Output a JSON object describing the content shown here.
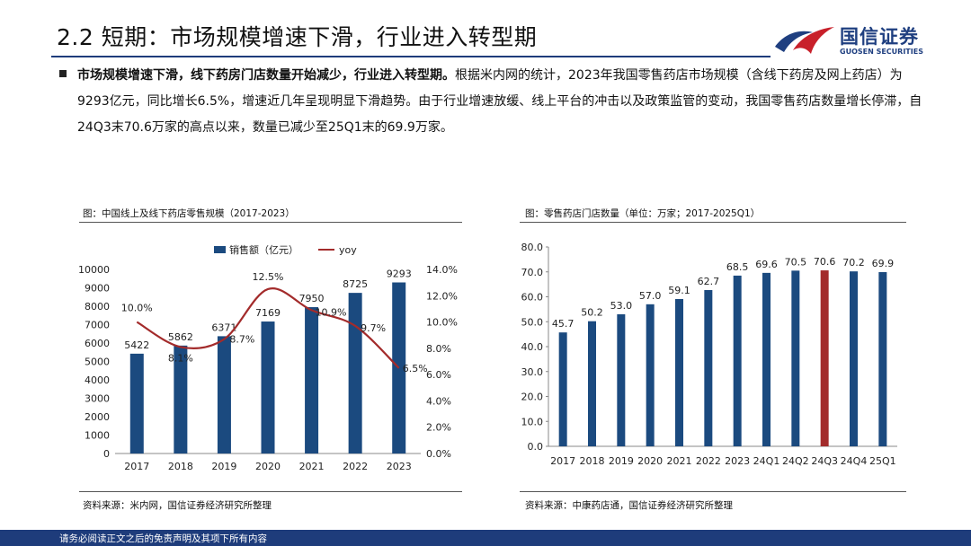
{
  "header": {
    "title": "2.2 短期：市场规模增速下滑，行业进入转型期",
    "logo_cn": "国信证券",
    "logo_en": "GUOSEN SECURITIES"
  },
  "body": {
    "lead": "市场规模增速下滑，线下药房门店数量开始减少，行业进入转型期。",
    "text": "根据米内网的统计，2023年我国零售药店市场规模（含线下药房及网上药店）为9293亿元，同比增长6.5%，增速近几年呈现明显下滑趋势。由于行业增速放缓、线上平台的冲击以及政策监管的变动，我国零售药店数量增长停滞，自24Q3末70.6万家的高点以来，数量已减少至25Q1末的69.9万家。"
  },
  "chart_data": [
    {
      "type": "bar+line",
      "title": "图：中国线上及线下药店零售规模（2017-2023）",
      "source": "资料来源：米内网，国信证券经济研究所整理",
      "categories": [
        "2017",
        "2018",
        "2019",
        "2020",
        "2021",
        "2022",
        "2023"
      ],
      "series": [
        {
          "name": "销售额（亿元）",
          "type": "bar",
          "axis": "left",
          "values": [
            5422,
            5862,
            6371,
            7169,
            7950,
            8725,
            9293
          ],
          "labels": [
            "5422",
            "5862",
            "6371",
            "7169",
            "7950",
            "8725",
            "9293"
          ]
        },
        {
          "name": "yoy",
          "type": "line",
          "axis": "right",
          "values": [
            10.0,
            8.1,
            8.7,
            12.5,
            10.9,
            9.7,
            6.5
          ],
          "labels": [
            "10.0%",
            "8.1%",
            "8.7%",
            "12.5%",
            "10.9%",
            "9.7%",
            "6.5%"
          ]
        }
      ],
      "left_axis": {
        "min": 0,
        "max": 10000,
        "step": 1000,
        "ticks": [
          "0",
          "1000",
          "2000",
          "3000",
          "4000",
          "5000",
          "6000",
          "7000",
          "8000",
          "9000",
          "10000"
        ]
      },
      "right_axis": {
        "min": 0,
        "max": 14,
        "step": 2,
        "ticks": [
          "0.0%",
          "2.0%",
          "4.0%",
          "6.0%",
          "8.0%",
          "10.0%",
          "12.0%",
          "14.0%"
        ]
      },
      "legend": "top",
      "colors": {
        "bar": "#1b4a7f",
        "line": "#a32b2b"
      }
    },
    {
      "type": "bar",
      "title": "图：零售药店门店数量（单位：万家；2017-2025Q1）",
      "source": "资料来源：中康药店通，国信证券经济研究所整理",
      "categories": [
        "2017",
        "2018",
        "2019",
        "2020",
        "2021",
        "2022",
        "2023",
        "24Q1",
        "24Q2",
        "24Q3",
        "24Q4",
        "25Q1"
      ],
      "values": [
        45.7,
        50.2,
        53.0,
        57.0,
        59.1,
        62.7,
        68.5,
        69.6,
        70.5,
        70.6,
        70.2,
        69.9
      ],
      "labels": [
        "45.7",
        "50.2",
        "53.0",
        "57.0",
        "59.1",
        "62.7",
        "68.5",
        "69.6",
        "70.5",
        "70.6",
        "70.2",
        "69.9"
      ],
      "highlight_index": 9,
      "y_axis": {
        "min": 0,
        "max": 80,
        "step": 10,
        "ticks": [
          "0.0",
          "10.0",
          "20.0",
          "30.0",
          "40.0",
          "50.0",
          "60.0",
          "70.0",
          "80.0"
        ]
      },
      "colors": {
        "bar": "#1b4a7f",
        "highlight": "#a32b2b"
      }
    }
  ],
  "footer": {
    "disclaimer": "请务必阅读正文之后的免责声明及其项下所有内容"
  }
}
